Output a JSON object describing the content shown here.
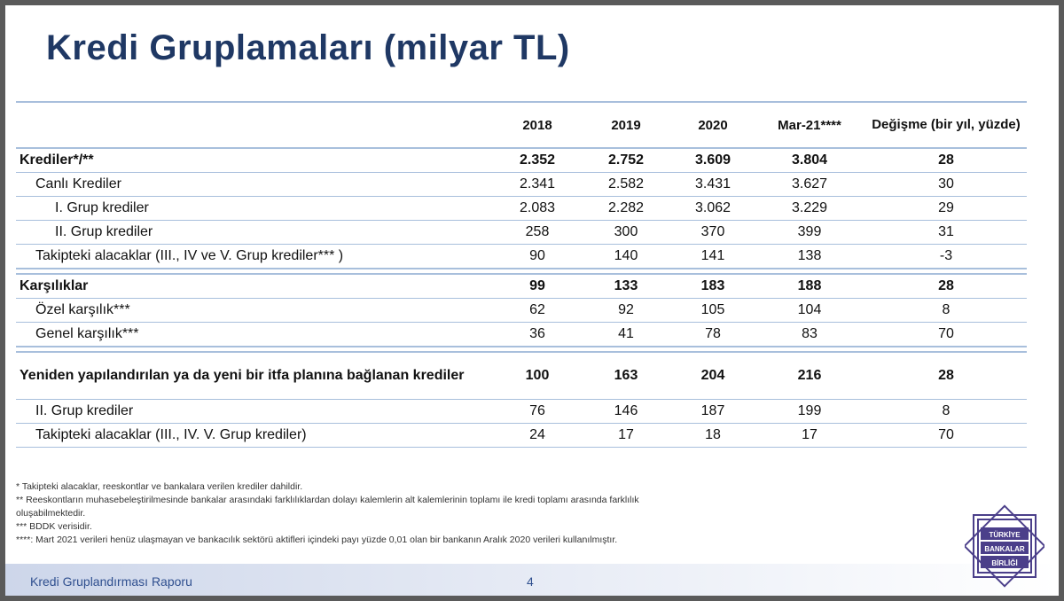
{
  "slide": {
    "title": "Kredi Gruplamaları (milyar TL)",
    "footer": "Kredi Gruplandırması Raporu",
    "page_number": "4"
  },
  "table": {
    "headers": [
      "",
      "2018",
      "2019",
      "2020",
      "Mar-21****",
      "Değişme (bir yıl, yüzde)"
    ],
    "rows": [
      {
        "label": "Krediler*/**",
        "values": [
          "2.352",
          "2.752",
          "3.609",
          "3.804",
          "28"
        ]
      },
      {
        "label": "Canlı Krediler",
        "values": [
          "2.341",
          "2.582",
          "3.431",
          "3.627",
          "30"
        ]
      },
      {
        "label": "I. Grup krediler",
        "values": [
          "2.083",
          "2.282",
          "3.062",
          "3.229",
          "29"
        ]
      },
      {
        "label": "II. Grup krediler",
        "values": [
          "258",
          "300",
          "370",
          "399",
          "31"
        ]
      },
      {
        "label": "Takipteki alacaklar (III., IV ve V. Grup krediler*** )",
        "values": [
          "90",
          "140",
          "141",
          "138",
          "-3"
        ]
      },
      {
        "label": "Karşılıklar",
        "values": [
          "99",
          "133",
          "183",
          "188",
          "28"
        ]
      },
      {
        "label": "Özel karşılık***",
        "values": [
          "62",
          "92",
          "105",
          "104",
          "8"
        ]
      },
      {
        "label": "Genel karşılık***",
        "values": [
          "36",
          "41",
          "78",
          "83",
          "70"
        ]
      },
      {
        "label": "Yeniden yapılandırılan ya da yeni bir itfa planına bağlanan krediler",
        "values": [
          "100",
          "163",
          "204",
          "216",
          "28"
        ]
      },
      {
        "label": "II. Grup krediler",
        "values": [
          "76",
          "146",
          "187",
          "199",
          "8"
        ]
      },
      {
        "label": "Takipteki alacaklar (III., IV. V. Grup krediler)",
        "values": [
          "24",
          "17",
          "18",
          "17",
          "70"
        ]
      }
    ]
  },
  "footnotes": [
    "* Takipteki alacaklar, reeskontlar ve bankalara verilen krediler dahildir.",
    "** Reeskontların muhasebeleştirilmesinde bankalar arasındaki farklılıklardan dolayı kalemlerin alt kalemlerinin toplamı ile kredi toplamı arasında farklılık",
    "oluşabilmektedir.",
    "*** BDDK verisidir.",
    "****: Mart 2021 verileri henüz ulaşmayan ve bankacılık sektörü aktifleri içindeki payı yüzde 0,01 olan bir bankanın Aralık 2020 verileri kullanılmıştır."
  ],
  "logo": {
    "lines": [
      "TÜRKİYE",
      "BANKALAR",
      "BİRLİĞİ"
    ],
    "color": "#4b3f8a"
  }
}
